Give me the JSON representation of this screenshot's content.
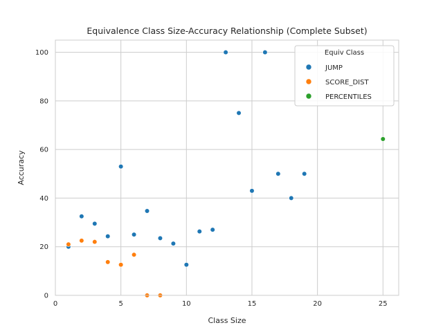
{
  "chart_data": {
    "type": "scatter",
    "title": "Equivalence Class Size-Accuracy Relationship (Complete Subset)",
    "xlabel": "Class Size",
    "ylabel": "Accuracy",
    "xlim": [
      0,
      26.2
    ],
    "ylim": [
      0,
      105
    ],
    "xticks": [
      0,
      5,
      10,
      15,
      20,
      25
    ],
    "yticks": [
      0,
      20,
      40,
      60,
      80,
      100
    ],
    "grid": true,
    "legend": {
      "title": "Equiv Class",
      "placement": "top-right"
    },
    "series": [
      {
        "name": "JUMP",
        "color": "#1f77b4",
        "points": [
          [
            1,
            20
          ],
          [
            2,
            32.5
          ],
          [
            3,
            29.5
          ],
          [
            4,
            24.3
          ],
          [
            5,
            53
          ],
          [
            6,
            25
          ],
          [
            7,
            34.7
          ],
          [
            8,
            23.5
          ],
          [
            9,
            21.3
          ],
          [
            10,
            12.6
          ],
          [
            11,
            26.3
          ],
          [
            12,
            27
          ],
          [
            13,
            100
          ],
          [
            14,
            75
          ],
          [
            15,
            43
          ],
          [
            16,
            100
          ],
          [
            17,
            50
          ],
          [
            18,
            40
          ],
          [
            19,
            50
          ]
        ]
      },
      {
        "name": "SCORE_DIST",
        "color": "#ff7f0e",
        "points": [
          [
            1,
            21
          ],
          [
            2,
            22.5
          ],
          [
            3,
            22
          ],
          [
            4,
            13.7
          ],
          [
            5,
            12.6
          ],
          [
            6,
            16.7
          ],
          [
            7,
            0
          ],
          [
            8,
            0
          ]
        ]
      },
      {
        "name": "PERCENTILES",
        "color": "#2ca02c",
        "points": [
          [
            25,
            64.3
          ]
        ]
      }
    ]
  }
}
